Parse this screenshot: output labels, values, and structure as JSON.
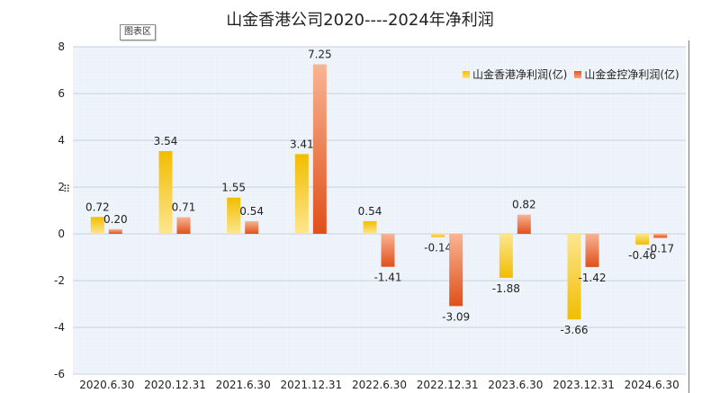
{
  "title": "山金香港公司2020----2024年净利润",
  "tag": {
    "label": "图表区"
  },
  "colors": {
    "gold_top": "#f2bd00",
    "gold_bottom": "#fde68f",
    "orange_top": "#e0501a",
    "orange_bottom": "#f8b494",
    "plot_bg": "#eef4fa",
    "grid": "#c8d3de"
  },
  "chart_data": {
    "type": "bar",
    "title": "山金香港公司2020----2024年净利润",
    "categories": [
      "2020.6.30",
      "2020.12.31",
      "2021.6.30",
      "2021.12.31",
      "2022.6.30",
      "2022.12.31",
      "2023.6.30",
      "2023.12.31",
      "2024.6.30"
    ],
    "series": [
      {
        "name": "山金香港净利润(亿)",
        "values": [
          0.72,
          3.54,
          1.55,
          3.41,
          0.54,
          -0.14,
          -1.88,
          -3.66,
          -0.46
        ],
        "labels": [
          "0.72",
          "3.54",
          "1.55",
          "3.41",
          "0.54",
          "-0.14",
          "-1.88",
          "-3.66",
          "-0.46"
        ]
      },
      {
        "name": "山金金控净利润(亿)",
        "values": [
          0.2,
          0.71,
          0.54,
          7.25,
          -1.41,
          -3.09,
          0.82,
          -1.42,
          -0.17
        ],
        "labels": [
          "0.20",
          "0.71",
          "0.54",
          "7.25",
          "-1.41",
          "-3.09",
          "0.82",
          "-1.42",
          "-0.17"
        ]
      }
    ],
    "ylim": [
      -6,
      8
    ],
    "yticks": [
      -6,
      -4,
      -2,
      0,
      2,
      4,
      6,
      8
    ],
    "ytick_labels": [
      "-6",
      "-4",
      "-2",
      "0",
      "2",
      "4",
      "6",
      "8"
    ],
    "grid": true,
    "legend_position": "top-right"
  }
}
